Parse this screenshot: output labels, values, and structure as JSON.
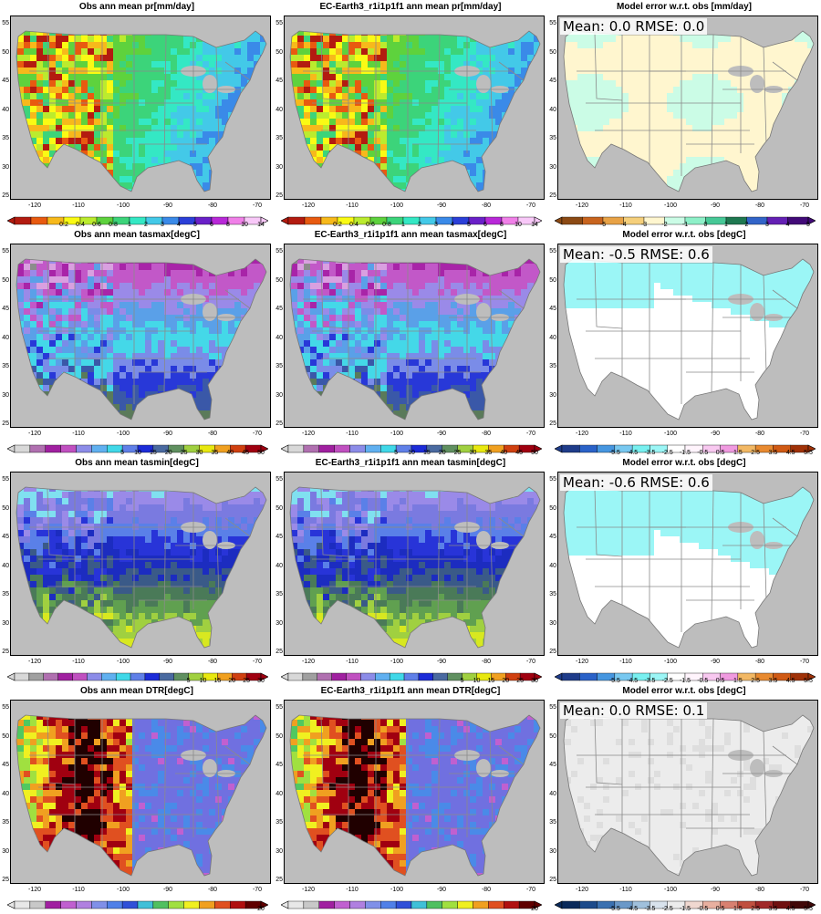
{
  "axes": {
    "x_ticks": [
      "-120",
      "-110",
      "-100",
      "-90",
      "-80",
      "-70"
    ],
    "y_ticks": [
      "55",
      "50",
      "45",
      "40",
      "35",
      "30",
      "25"
    ]
  },
  "rows": [
    {
      "obs_title": "Obs  ann mean pr[mm/day]",
      "model_title": "EC-Earth3_r1i1p1f1 ann mean pr[mm/day]",
      "error_title": "Model error w.r.t. obs [mm/day]",
      "stat_text": "Mean: 0.0   RMSE: 0.0",
      "field_colors": [
        "#b31b10",
        "#e85a10",
        "#f7b91b",
        "#fafa14",
        "#bbeb2e",
        "#5ed23d",
        "#3cd47a",
        "#34e8c4",
        "#43c9e8",
        "#3a8ae8",
        "#2b3fd8",
        "#6a20c8",
        "#b828d8",
        "#f080e8"
      ],
      "error_fill": "#fff6cf",
      "error_secondary": "#cbfce6",
      "colorbar_main": {
        "colors": [
          "#b31b10",
          "#e85a10",
          "#f7b91b",
          "#fafa14",
          "#bbeb2e",
          "#5ed23d",
          "#3cd47a",
          "#34e8c4",
          "#43c9e8",
          "#3a8ae8",
          "#2b3fd8",
          "#6a20c8",
          "#b828d8",
          "#f080e8",
          "#f8c8f8"
        ],
        "labels": [
          "0.2",
          "0.4",
          "0.6",
          "0.8",
          "1",
          "2",
          "3",
          "4",
          "5",
          "6",
          "8",
          "10",
          "14"
        ]
      },
      "colorbar_error": {
        "colors": [
          "#8c4a14",
          "#c8641e",
          "#e8a246",
          "#f5cf7b",
          "#fff6cf",
          "#cbfce6",
          "#8ef0c8",
          "#46c896",
          "#1e7850",
          "#3264c8",
          "#6420b4",
          "#420a78"
        ],
        "labels": [
          "-5",
          "-4",
          "-3",
          "-2",
          "-1",
          "0",
          "1",
          "2",
          "3",
          "4",
          "5"
        ]
      }
    },
    {
      "obs_title": "Obs  ann mean tasmax[degC]",
      "model_title": "EC-Earth3_r1i1p1f1 ann mean tasmax[degC]",
      "error_title": "Model error w.r.t. obs [degC]",
      "stat_text": "Mean: -0.5   RMSE: 0.6",
      "field_colors": [
        "#b0b0b0",
        "#8c8c8c",
        "#d9a0e0",
        "#a824a8",
        "#c258c8",
        "#9a8ae8",
        "#5aa0e8",
        "#44d8e8",
        "#7a8ce8",
        "#2838d8",
        "#3a58a8",
        "#5a7a5a"
      ],
      "error_fill": "#ffffff",
      "error_secondary": "#9bf6f6",
      "colorbar_main": {
        "colors": [
          "#d8d8d8",
          "#b070b0",
          "#a020a0",
          "#c050c0",
          "#8c8ce8",
          "#60b0f0",
          "#40d8e8",
          "#6080e8",
          "#1c2cd8",
          "#4a6aa0",
          "#609060",
          "#a0d040",
          "#e8e810",
          "#f0a020",
          "#d04010",
          "#a00010"
        ],
        "labels": [
          "5",
          "10",
          "15",
          "20",
          "25",
          "30",
          "35",
          "40",
          "45",
          "50"
        ]
      },
      "colorbar_error": {
        "colors": [
          "#1f3c8a",
          "#2a62c8",
          "#4696e0",
          "#78c8f0",
          "#78f0f0",
          "#9bf6f6",
          "#ffffff",
          "#fff4fc",
          "#f8c8f0",
          "#f09ae0",
          "#f2b864",
          "#e88a30",
          "#d05a14",
          "#a03208"
        ],
        "labels": [
          "-5.5",
          "-4.5",
          "-3.5",
          "-2.5",
          "-1.5",
          "-0.5",
          "0.5",
          "1.5",
          "2.5",
          "3.5",
          "4.5",
          "5.5"
        ]
      }
    },
    {
      "obs_title": "Obs  ann mean tasmin[degC]",
      "model_title": "EC-Earth3_r1i1p1f1 ann mean tasmin[degC]",
      "error_title": "Model error w.r.t. obs [degC]",
      "stat_text": "Mean: -0.6   RMSE: 0.6",
      "field_colors": [
        "#80e0f0",
        "#9a8ae8",
        "#7a7ae0",
        "#5a80e8",
        "#2834d8",
        "#1c2cc0",
        "#3a5a88",
        "#4a7a58",
        "#60a050",
        "#a0d040",
        "#d8e820",
        "#f0f010"
      ],
      "error_fill": "#ffffff",
      "error_secondary": "#9bf6f6",
      "colorbar_main": {
        "colors": [
          "#d8d8d8",
          "#a0a0a0",
          "#b070b0",
          "#a020a0",
          "#c050c0",
          "#8c8ce8",
          "#60b0f0",
          "#40d8e8",
          "#6080e8",
          "#1c2cd8",
          "#4a6aa0",
          "#609060",
          "#a0d040",
          "#e8e810",
          "#f0a020",
          "#d04010",
          "#a00010"
        ],
        "labels": [
          "5",
          "10",
          "15",
          "20",
          "25",
          "30"
        ]
      },
      "colorbar_error": {
        "colors": [
          "#1f3c8a",
          "#2a62c8",
          "#4696e0",
          "#78c8f0",
          "#78f0f0",
          "#9bf6f6",
          "#ffffff",
          "#fff4fc",
          "#f8c8f0",
          "#f09ae0",
          "#f2b864",
          "#e88a30",
          "#d05a14",
          "#a03208"
        ],
        "labels": [
          "-5.5",
          "-4.5",
          "-3.5",
          "-2.5",
          "-1.5",
          "-0.5",
          "0.5",
          "1.5",
          "2.5",
          "3.5",
          "4.5",
          "5.5"
        ]
      }
    },
    {
      "obs_title": "Obs  ann mean DTR[degC]",
      "model_title": "EC-Earth3_r1i1p1f1 ann mean DTR[degC]",
      "error_title": "Model error w.r.t. obs [degC]",
      "stat_text": "Mean: 0.0   RMSE: 0.1",
      "field_colors": [
        "#c060d0",
        "#7070e0",
        "#4a8ae8",
        "#3cc8e0",
        "#50c860",
        "#a0e040",
        "#f0f020",
        "#f0a020",
        "#e05020",
        "#a00010",
        "#200000"
      ],
      "error_fill": "#ececec",
      "error_secondary": "#dedede",
      "colorbar_main": {
        "colors": [
          "#e8e8e8",
          "#c8c8c8",
          "#a020a0",
          "#c060d0",
          "#b080e0",
          "#8090e8",
          "#5080e8",
          "#3050d8",
          "#40c0d8",
          "#50c060",
          "#a0e040",
          "#f0f020",
          "#f0a020",
          "#e05020",
          "#b01010",
          "#600000"
        ],
        "labels": [
          "20"
        ]
      },
      "colorbar_error": {
        "colors": [
          "#0a2a5a",
          "#1c4a8a",
          "#3a70b0",
          "#6a98c8",
          "#a0c0dc",
          "#d8e2ec",
          "#ececec",
          "#f0d8d0",
          "#e8b0a0",
          "#d88070",
          "#c05040",
          "#a02828",
          "#701010",
          "#400808"
        ],
        "labels": [
          "-5.5",
          "-4.5",
          "-3.5",
          "-2.5",
          "-1.5",
          "-0.5",
          "0.5",
          "1.5",
          "2.5",
          "3.5",
          "4.5",
          "5.5"
        ]
      }
    }
  ]
}
